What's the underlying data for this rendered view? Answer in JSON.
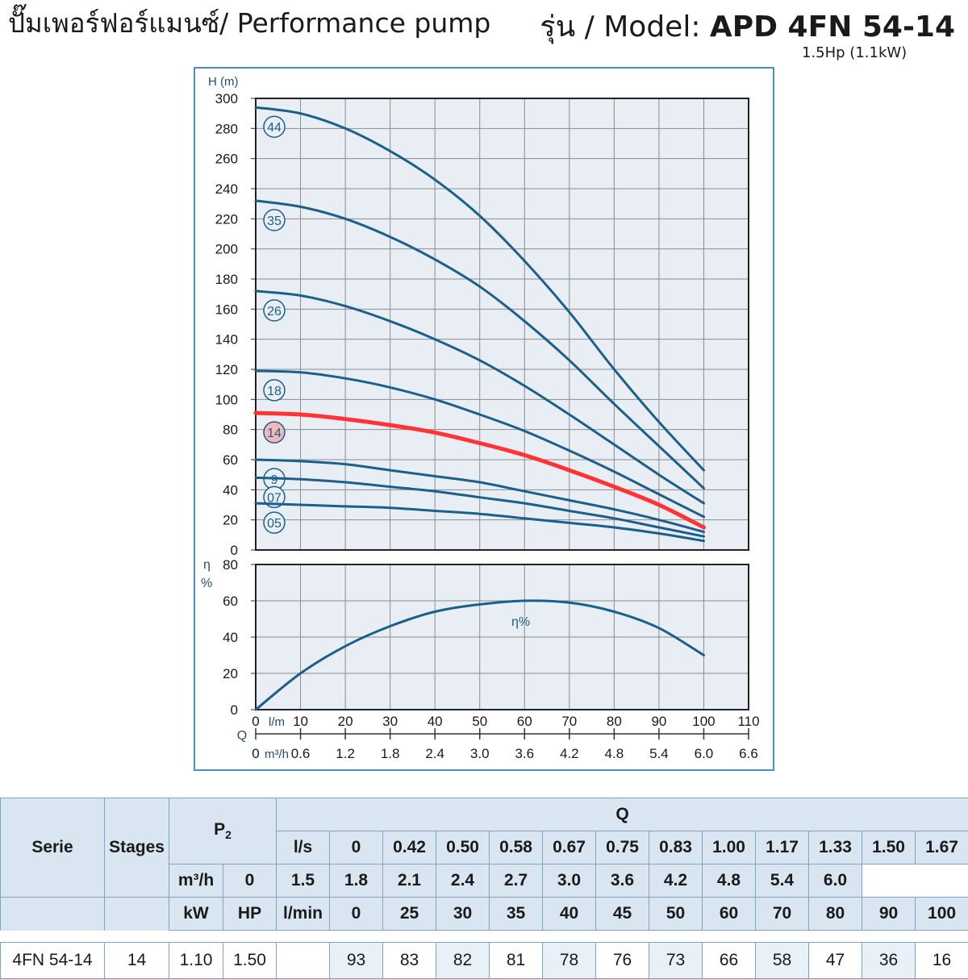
{
  "header": {
    "title_left": "ปั๊มเพอร์ฟอร์แมนซ์/ Performance pump",
    "model_prefix": "รุ่น / Model: ",
    "model": "APD 4FN 54-14",
    "power": "1.5Hp (1.1kW)"
  },
  "colors": {
    "curve": "#1b5f8c",
    "highlight": "#ff3333",
    "frame": "#4a8fc4",
    "plot_bg": "#e9eef5",
    "axis_text": "#1e4f78"
  },
  "chart_data": [
    {
      "type": "line",
      "ylabel": "H (m)",
      "ylim": [
        0,
        300
      ],
      "yticks": [
        0,
        20,
        40,
        60,
        80,
        100,
        120,
        140,
        160,
        180,
        200,
        220,
        240,
        260,
        280,
        300
      ],
      "xlim": [
        0,
        110
      ],
      "grid": true,
      "series": [
        {
          "name": "44",
          "x": [
            0,
            10,
            20,
            30,
            40,
            50,
            60,
            70,
            80,
            90,
            100
          ],
          "y": [
            294,
            290,
            280,
            265,
            246,
            222,
            192,
            158,
            120,
            85,
            53
          ],
          "highlight": false
        },
        {
          "name": "35",
          "x": [
            0,
            10,
            20,
            30,
            40,
            50,
            60,
            70,
            80,
            90,
            100
          ],
          "y": [
            232,
            228,
            220,
            208,
            193,
            175,
            152,
            126,
            97,
            69,
            41
          ],
          "highlight": false
        },
        {
          "name": "26",
          "x": [
            0,
            10,
            20,
            30,
            40,
            50,
            60,
            70,
            80,
            90,
            100
          ],
          "y": [
            172,
            169,
            162,
            152,
            140,
            126,
            109,
            90,
            70,
            50,
            31
          ],
          "highlight": false
        },
        {
          "name": "18",
          "x": [
            0,
            10,
            20,
            30,
            40,
            50,
            60,
            70,
            80,
            90,
            100
          ],
          "y": [
            119,
            118,
            114,
            108,
            100,
            90,
            79,
            66,
            52,
            37,
            22
          ],
          "highlight": false
        },
        {
          "name": "14",
          "x": [
            0,
            10,
            20,
            30,
            40,
            50,
            60,
            70,
            80,
            90,
            100
          ],
          "y": [
            91,
            90,
            87,
            83,
            78,
            71,
            63,
            53,
            42,
            30,
            15
          ],
          "highlight": true
        },
        {
          "name": "9",
          "x": [
            0,
            10,
            20,
            30,
            40,
            50,
            60,
            70,
            80,
            90,
            100
          ],
          "y": [
            60,
            59,
            57,
            53,
            49,
            45,
            39,
            33,
            27,
            20,
            12
          ],
          "highlight": false
        },
        {
          "name": "07",
          "x": [
            0,
            10,
            20,
            30,
            40,
            50,
            60,
            70,
            80,
            90,
            100
          ],
          "y": [
            48,
            47,
            45,
            42,
            39,
            35,
            31,
            26,
            21,
            15,
            9
          ],
          "highlight": false
        },
        {
          "name": "05",
          "x": [
            0,
            10,
            20,
            30,
            40,
            50,
            60,
            70,
            80,
            90,
            100
          ],
          "y": [
            31,
            30,
            29,
            28,
            26,
            24,
            21,
            18,
            15,
            11,
            6
          ],
          "highlight": false
        }
      ]
    },
    {
      "type": "line",
      "ylabel_top": "η",
      "ylabel_bottom": "%",
      "ylim": [
        0,
        80
      ],
      "yticks": [
        0,
        20,
        40,
        60,
        80
      ],
      "xlim": [
        0,
        110
      ],
      "grid": true,
      "series": [
        {
          "name": "η%",
          "x": [
            0,
            10,
            20,
            30,
            40,
            50,
            60,
            70,
            80,
            90,
            100
          ],
          "y": [
            0,
            20,
            35,
            46,
            54,
            58,
            60,
            59,
            54,
            45,
            30
          ]
        }
      ],
      "x_axis_lpm": {
        "label": "l/m",
        "ticks": [
          "0",
          "10",
          "20",
          "30",
          "40",
          "50",
          "60",
          "70",
          "80",
          "90",
          "100",
          "110"
        ]
      },
      "x_axis_m3h": {
        "label": "m³/h",
        "ticks": [
          "0",
          "0.6",
          "1.2",
          "1.8",
          "2.4",
          "3.0",
          "3.6",
          "4.2",
          "4.8",
          "5.4",
          "6.0",
          "6.6"
        ]
      },
      "x_axis_label": "Q"
    }
  ],
  "table": {
    "serie_header": "Serie",
    "stages_header": "Stages",
    "p2_header": "P",
    "p2_sub": "2",
    "q_header": "Q",
    "kw_header": "kW",
    "hp_header": "HP",
    "ls_label": "l/s",
    "m3h_label": "m³/h",
    "lmin_label": "l/min",
    "ls": [
      "0",
      "0.42",
      "0.50",
      "0.58",
      "0.67",
      "0.75",
      "0.83",
      "1.00",
      "1.17",
      "1.33",
      "1.50",
      "1.67"
    ],
    "m3h": [
      "0",
      "1.5",
      "1.8",
      "2.1",
      "2.4",
      "2.7",
      "3.0",
      "3.6",
      "4.2",
      "4.8",
      "5.4",
      "6.0"
    ],
    "lmin": [
      "0",
      "25",
      "30",
      "35",
      "40",
      "45",
      "50",
      "60",
      "70",
      "80",
      "90",
      "100"
    ],
    "row": {
      "serie": "4FN 54-14",
      "stages": "14",
      "kw": "1.10",
      "hp": "1.50",
      "values": [
        "93",
        "83",
        "82",
        "81",
        "78",
        "76",
        "73",
        "66",
        "58",
        "47",
        "36",
        "16"
      ]
    }
  }
}
